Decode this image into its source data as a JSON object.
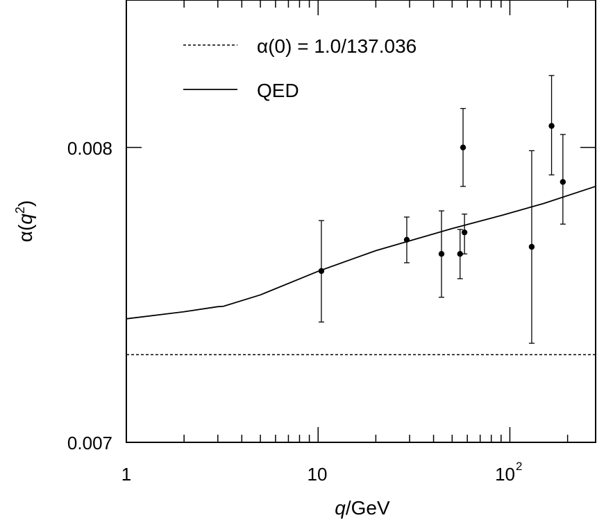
{
  "chart_data": {
    "type": "scatter",
    "xscale": "log",
    "xlim": [
      1,
      280
    ],
    "ylim": [
      0.007,
      0.0085
    ],
    "x_ticks": [
      {
        "value": 1,
        "label": "1",
        "sup": ""
      },
      {
        "value": 10,
        "label": "10",
        "sup": ""
      },
      {
        "value": 100,
        "label": "10",
        "sup": "2"
      }
    ],
    "y_ticks": [
      {
        "value": 0.007,
        "label": "0.007"
      },
      {
        "value": 0.008,
        "label": "0.008"
      }
    ],
    "xlabel": {
      "italic": "q",
      "rest": "/GeV"
    },
    "ylabel": {
      "alpha": "α",
      "open": "(",
      "italic": "q",
      "sup": "2",
      "close": ")"
    },
    "legend_position": "top-left",
    "series": [
      {
        "name": "α(0) = 1.0/137.036",
        "kind": "reference-line",
        "style": "dashed",
        "y": 0.0072974
      },
      {
        "name": "QED",
        "kind": "curve",
        "style": "solid",
        "points": [
          [
            1,
            0.007419
          ],
          [
            2,
            0.007443
          ],
          [
            3,
            0.00746
          ],
          [
            3.2,
            0.007461
          ],
          [
            5,
            0.0075
          ],
          [
            10,
            0.00758
          ],
          [
            20,
            0.00765
          ],
          [
            50,
            0.007725
          ],
          [
            91,
            0.00777
          ],
          [
            150,
            0.00781
          ],
          [
            280,
            0.007868
          ]
        ]
      },
      {
        "name": "",
        "kind": "points-with-errors",
        "points": [
          {
            "x": 10.4,
            "y": 0.007581,
            "ylo": 0.007408,
            "yhi": 0.007752
          },
          {
            "x": 29,
            "y": 0.007687,
            "ylo": 0.007609,
            "yhi": 0.007764
          },
          {
            "x": 44,
            "y": 0.007639,
            "ylo": 0.007492,
            "yhi": 0.007785
          },
          {
            "x": 55,
            "y": 0.007639,
            "ylo": 0.007555,
            "yhi": 0.007722
          },
          {
            "x": 57,
            "y": 0.008,
            "ylo": 0.007868,
            "yhi": 0.008132
          },
          {
            "x": 58,
            "y": 0.007712,
            "ylo": 0.007639,
            "yhi": 0.007774
          },
          {
            "x": 130,
            "y": 0.007663,
            "ylo": 0.007336,
            "yhi": 0.007989
          },
          {
            "x": 165,
            "y": 0.008073,
            "ylo": 0.007907,
            "yhi": 0.008244
          },
          {
            "x": 189,
            "y": 0.007883,
            "ylo": 0.00774,
            "yhi": 0.008044
          }
        ]
      }
    ]
  }
}
